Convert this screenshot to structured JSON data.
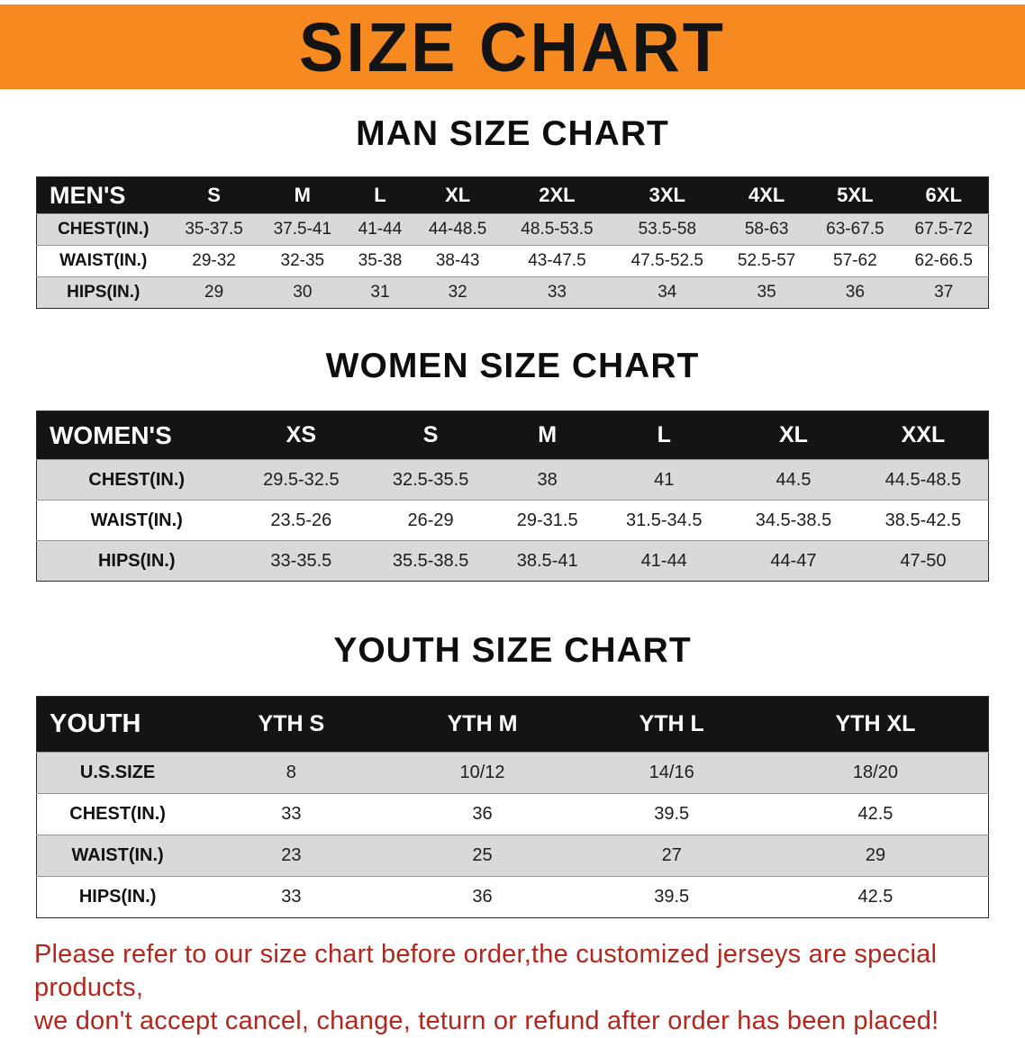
{
  "banner": {
    "title": "SIZE CHART"
  },
  "colors": {
    "banner_bg": "#f6891f",
    "table_header_bg": "#141414",
    "row_alt_gray": "#d9d9d9",
    "footer_red": "#b2271d"
  },
  "sections": [
    {
      "heading": "MAN SIZE CHART",
      "table": {
        "header": [
          "MEN'S",
          "S",
          "M",
          "L",
          "XL",
          "2XL",
          "3XL",
          "4XL",
          "5XL",
          "6XL"
        ],
        "rows": [
          [
            "CHEST(IN.)",
            "35-37.5",
            "37.5-41",
            "41-44",
            "44-48.5",
            "48.5-53.5",
            "53.5-58",
            "58-63",
            "63-67.5",
            "67.5-72"
          ],
          [
            "WAIST(IN.)",
            "29-32",
            "32-35",
            "35-38",
            "38-43",
            "43-47.5",
            "47.5-52.5",
            "52.5-57",
            "57-62",
            "62-66.5"
          ],
          [
            "HIPS(IN.)",
            "29",
            "30",
            "31",
            "32",
            "33",
            "34",
            "35",
            "36",
            "37"
          ]
        ]
      }
    },
    {
      "heading": "WOMEN SIZE CHART",
      "table": {
        "header": [
          "WOMEN'S",
          "XS",
          "S",
          "M",
          "L",
          "XL",
          "XXL"
        ],
        "rows": [
          [
            "CHEST(IN.)",
            "29.5-32.5",
            "32.5-35.5",
            "38",
            "41",
            "44.5",
            "44.5-48.5"
          ],
          [
            "WAIST(IN.)",
            "23.5-26",
            "26-29",
            "29-31.5",
            "31.5-34.5",
            "34.5-38.5",
            "38.5-42.5"
          ],
          [
            "HIPS(IN.)",
            "33-35.5",
            "35.5-38.5",
            "38.5-41",
            "41-44",
            "44-47",
            "47-50"
          ]
        ]
      }
    },
    {
      "heading": "YOUTH SIZE CHART",
      "table": {
        "header": [
          "YOUTH",
          "YTH S",
          "YTH M",
          "YTH L",
          "YTH XL"
        ],
        "rows": [
          [
            "U.S.SIZE",
            "8",
            "10/12",
            "14/16",
            "18/20"
          ],
          [
            "CHEST(IN.)",
            "33",
            "36",
            "39.5",
            "42.5"
          ],
          [
            "WAIST(IN.)",
            "23",
            "25",
            "27",
            "29"
          ],
          [
            "HIPS(IN.)",
            "33",
            "36",
            "39.5",
            "42.5"
          ]
        ]
      }
    }
  ],
  "footer": {
    "line1": "Please refer to our size chart before order,the customized jerseys are special products,",
    "line2": "we don't accept cancel, change, teturn or refund after order has been placed!"
  }
}
